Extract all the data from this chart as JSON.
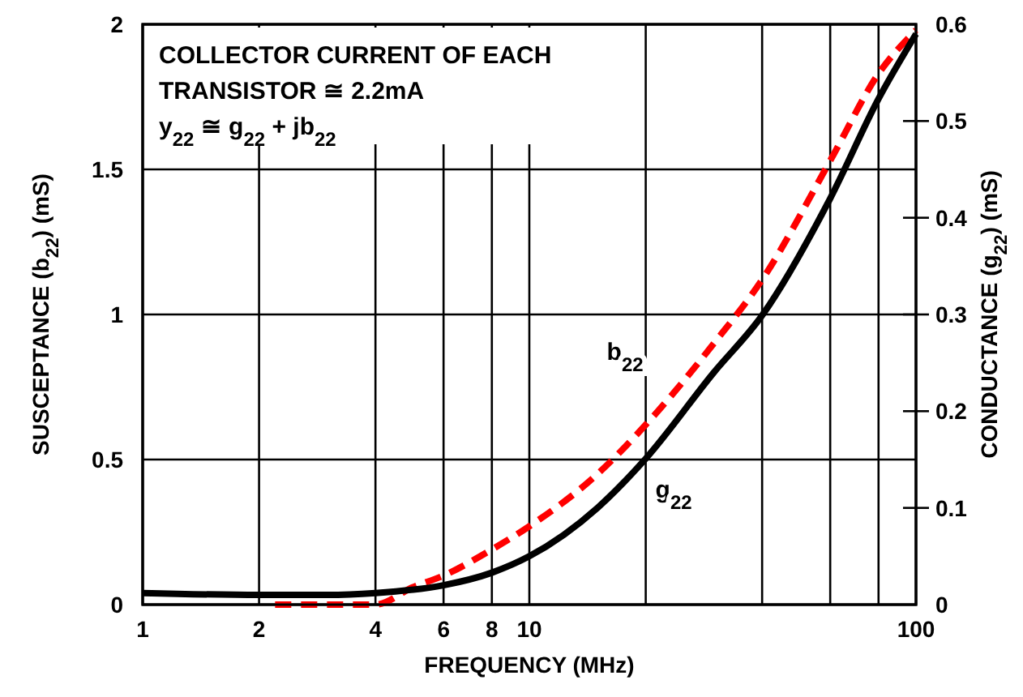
{
  "chart_data": {
    "type": "line",
    "xlabel": "FREQUENCY (MHz)",
    "ylabel": "SUSCEPTANCE (b$_{22}$) (mS)",
    "y2label": "CONDUCTANCE (g$_{22}$) (mS)",
    "annotations": [
      "COLLECTOR CURRENT OF EACH",
      "TRANSISTOR ≅ 2.2mA",
      "y$_{22}$ ≅ g$_{22}$ + jb$_{22}$"
    ],
    "log": "x",
    "grid": true,
    "xlim": [
      1,
      100
    ],
    "xticks": [
      1,
      2,
      4,
      6,
      8,
      10,
      {
        "value": 20,
        "label": null
      },
      {
        "value": 40,
        "label": null
      },
      {
        "value": 60,
        "label": null
      },
      {
        "value": 80,
        "label": null
      },
      100
    ],
    "ylim": [
      0,
      2
    ],
    "yticks": [
      0,
      0.5,
      1,
      1.5,
      2
    ],
    "y2lim": [
      0,
      0.6
    ],
    "y2ticks": [
      0,
      0.1,
      0.2,
      0.3,
      0.4,
      0.5,
      0.6
    ],
    "series": [
      {
        "name": "b$_{22}$",
        "color": "#ff0000",
        "line_style": "dashed",
        "x": [
          2.2,
          3,
          4,
          5,
          6,
          8,
          10,
          15,
          20,
          30,
          40,
          60,
          80,
          100
        ],
        "values": [
          0,
          0,
          0,
          0.06,
          0.1,
          0.19,
          0.27,
          0.45,
          0.62,
          0.9,
          1.12,
          1.53,
          1.83,
          1.98
        ]
      },
      {
        "name": "g$_{22}$",
        "color": "#000000",
        "line_style": "solid",
        "axis": "y2",
        "x": [
          1,
          2,
          3,
          4,
          6,
          8,
          10,
          15,
          20,
          30,
          40,
          60,
          80,
          100
        ],
        "values": [
          0.012,
          0.01,
          0.01,
          0.012,
          0.02,
          0.033,
          0.05,
          0.1,
          0.151,
          0.24,
          0.299,
          0.42,
          0.523,
          0.59
        ]
      }
    ]
  }
}
